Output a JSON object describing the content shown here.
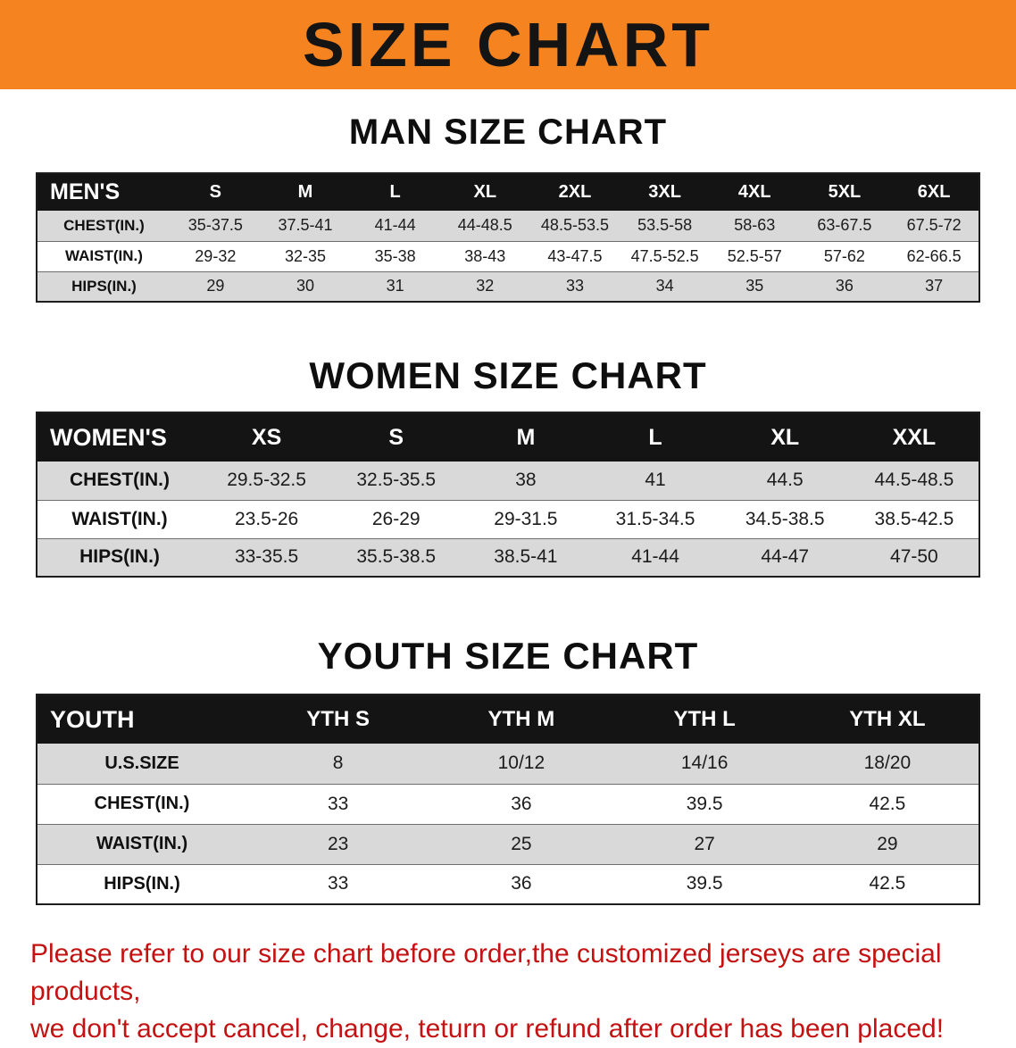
{
  "banner": {
    "title": "SIZE CHART",
    "bg_color": "#F5831F",
    "text_color": "#141414"
  },
  "sections": {
    "men": {
      "heading": "MAN SIZE CHART",
      "table": {
        "corner_label": "MEN'S",
        "columns": [
          "S",
          "M",
          "L",
          "XL",
          "2XL",
          "3XL",
          "4XL",
          "5XL",
          "6XL"
        ],
        "rows": [
          {
            "label": "CHEST(IN.)",
            "values": [
              "35-37.5",
              "37.5-41",
              "41-44",
              "44-48.5",
              "48.5-53.5",
              "53.5-58",
              "58-63",
              "63-67.5",
              "67.5-72"
            ]
          },
          {
            "label": "WAIST(IN.)",
            "values": [
              "29-32",
              "32-35",
              "35-38",
              "38-43",
              "43-47.5",
              "47.5-52.5",
              "52.5-57",
              "57-62",
              "62-66.5"
            ]
          },
          {
            "label": "HIPS(IN.)",
            "values": [
              "29",
              "30",
              "31",
              "32",
              "33",
              "34",
              "35",
              "36",
              "37"
            ]
          }
        ]
      }
    },
    "women": {
      "heading": "WOMEN SIZE CHART",
      "table": {
        "corner_label": "WOMEN'S",
        "columns": [
          "XS",
          "S",
          "M",
          "L",
          "XL",
          "XXL"
        ],
        "rows": [
          {
            "label": "CHEST(IN.)",
            "values": [
              "29.5-32.5",
              "32.5-35.5",
              "38",
              "41",
              "44.5",
              "44.5-48.5"
            ]
          },
          {
            "label": "WAIST(IN.)",
            "values": [
              "23.5-26",
              "26-29",
              "29-31.5",
              "31.5-34.5",
              "34.5-38.5",
              "38.5-42.5"
            ]
          },
          {
            "label": "HIPS(IN.)",
            "values": [
              "33-35.5",
              "35.5-38.5",
              "38.5-41",
              "41-44",
              "44-47",
              "47-50"
            ]
          }
        ]
      }
    },
    "youth": {
      "heading": "YOUTH SIZE CHART",
      "table": {
        "corner_label": "YOUTH",
        "columns": [
          "YTH S",
          "YTH M",
          "YTH L",
          "YTH XL"
        ],
        "rows": [
          {
            "label": "U.S.SIZE",
            "values": [
              "8",
              "10/12",
              "14/16",
              "18/20"
            ]
          },
          {
            "label": "CHEST(IN.)",
            "values": [
              "33",
              "36",
              "39.5",
              "42.5"
            ]
          },
          {
            "label": "WAIST(IN.)",
            "values": [
              "23",
              "25",
              "27",
              "29"
            ]
          },
          {
            "label": "HIPS(IN.)",
            "values": [
              "33",
              "36",
              "39.5",
              "42.5"
            ]
          }
        ]
      }
    }
  },
  "disclaimer": {
    "color": "#C41111",
    "line1": "Please refer to our size chart before order,the customized jerseys are special products,",
    "line2": "we don't accept cancel, change, teturn or refund after order has been placed!"
  },
  "row_colors": {
    "header_bg": "#141414",
    "header_text": "#FFFFFF",
    "stripe_gray": "#D9D9D9",
    "stripe_white": "#FFFFFF"
  }
}
